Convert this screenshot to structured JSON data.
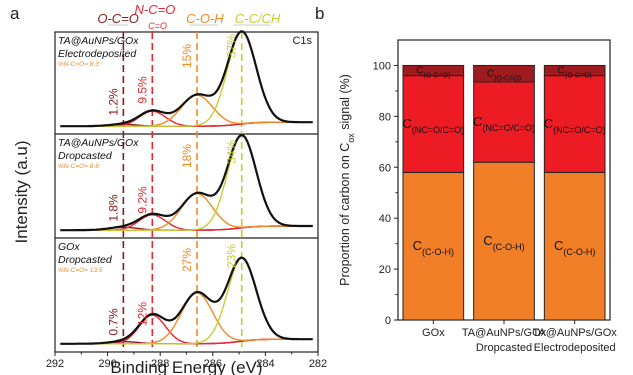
{
  "panel_a": {
    "letter": "a",
    "region_label": "C1s",
    "ylabel": "Intensity (a.u)",
    "xlabel": "Binding Energy (eV)",
    "x_ticks": [
      "292",
      "290",
      "288",
      "286",
      "284",
      "282"
    ],
    "bond_labels": {
      "oco": "O-C=O",
      "nco_top": "N-C=O",
      "nco_bottom": "C=O",
      "coh": "C-O-H",
      "cc": "C-C/CH"
    },
    "colors": {
      "oco": "#8b1a1a",
      "nco": "#e8262e",
      "coh": "#f08a24",
      "cc": "#c8cc33",
      "envelope": "#111111"
    }
  },
  "panel_b": {
    "letter": "b",
    "ylabel_main": "Proportion of carbon on C",
    "ylabel_sub": "ox",
    "ylabel_tail": " signal (%)",
    "y_ticks": [
      "0",
      "20",
      "40",
      "60",
      "80",
      "100"
    ],
    "segment_main": "C",
    "segment_subs": {
      "coh": "(C-O-H)",
      "nco": "(NC=O/C=O)",
      "oco": "(O-C=O)"
    },
    "colors": {
      "coh": "#f07f27",
      "nco": "#ed1c24",
      "oco": "#9e1b1f"
    }
  },
  "chart_data": [
    {
      "type": "line",
      "xlabel": "Binding Energy (eV)",
      "ylabel": "Intensity (a.u)",
      "xlim": [
        292,
        282
      ],
      "series_names": [
        "O-C=O",
        "N-C=O / C=O",
        "C-O-H",
        "C-C/CH"
      ],
      "peak_positions": [
        289.4,
        288.3,
        286.6,
        284.9
      ],
      "panels": [
        {
          "name_line1": "TA@AuNPs/GOx",
          "name_line2": "Electrodeposited",
          "ratio": "%N-C=O= 8.3",
          "percentages": [
            "1.2%",
            "9.5%",
            "15%",
            "37%"
          ]
        },
        {
          "name_line1": "TA@AuNPs/GOx",
          "name_line2": "Dropcasted",
          "ratio": "%N-C=O= 8.6",
          "percentages": [
            "1.8%",
            "9.2%",
            "18%",
            "34%"
          ]
        },
        {
          "name_line1": "GOx",
          "name_line2": "Dropcasted",
          "ratio": "%N-C=O= 13.5",
          "percentages": [
            "0.7%",
            "12%",
            "27%",
            "23%"
          ]
        }
      ]
    },
    {
      "type": "bar",
      "stacked": true,
      "categories": [
        {
          "line1": "GOx",
          "line2": ""
        },
        {
          "line1": "TA@AuNPs/GOx",
          "line2": "Dropcasted"
        },
        {
          "line1": "TA@AuNPs/GOx",
          "line2": "Electrodeposited"
        }
      ],
      "series": [
        {
          "name": "C(C-O-H)",
          "values": [
            58,
            62,
            58
          ]
        },
        {
          "name": "C(NC=O/C=O)",
          "values": [
            38,
            31.5,
            38
          ]
        },
        {
          "name": "C(O-C=O)",
          "values": [
            4,
            6.5,
            4
          ]
        }
      ],
      "ylim": [
        0,
        110
      ],
      "ylabel": "Proportion of carbon on Cox signal (%)"
    }
  ]
}
